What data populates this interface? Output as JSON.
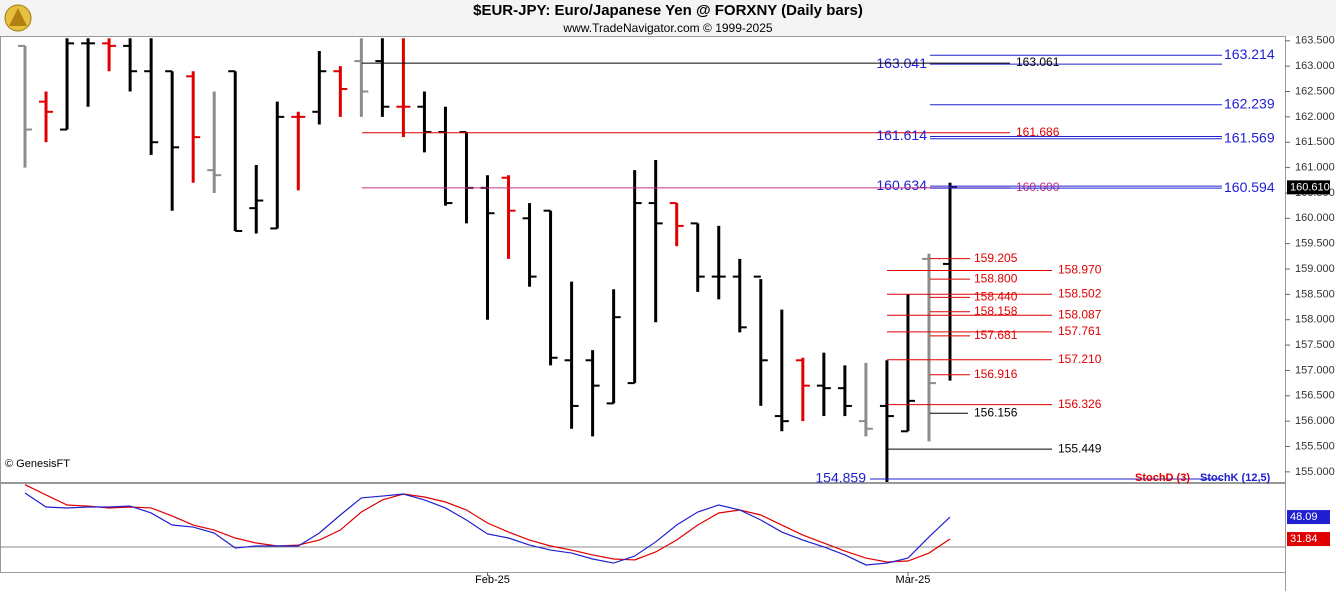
{
  "chart_data": [
    {
      "type": "ohlc",
      "title": "$EUR-JPY:  Euro/Japanese Yen @ FORXNY  (Daily bars)",
      "subtitle": "www.TradeNavigator.com © 1999-2025",
      "credit": "© GenesisFT",
      "categories": [
        null,
        null,
        null,
        null,
        null,
        null,
        null,
        null,
        null,
        null,
        null,
        null,
        null,
        null,
        null,
        null,
        null,
        null,
        null,
        null,
        null,
        null,
        "Feb-25",
        null,
        null,
        null,
        null,
        null,
        null,
        null,
        null,
        null,
        null,
        null,
        null,
        null,
        null,
        null,
        null,
        null,
        null,
        null,
        "Mar-25",
        null,
        null
      ],
      "high": [
        163.4,
        162.5,
        163.55,
        163.55,
        163.55,
        163.55,
        163.55,
        162.9,
        162.9,
        162.5,
        162.9,
        161.05,
        162.3,
        162.1,
        163.3,
        163.0,
        163.55,
        163.55,
        163.55,
        162.5,
        162.2,
        161.7,
        160.85,
        160.85,
        160.3,
        160.15,
        158.75,
        157.4,
        158.6,
        160.95,
        161.15,
        160.3,
        159.9,
        159.85,
        159.2,
        158.8,
        158.2,
        157.25,
        157.35,
        157.1,
        157.15,
        157.2,
        158.5,
        159.3,
        160.7
      ],
      "low": [
        161.0,
        161.5,
        161.75,
        162.2,
        162.9,
        162.5,
        161.25,
        160.15,
        160.7,
        160.5,
        159.75,
        159.7,
        159.8,
        160.55,
        161.85,
        162.0,
        162.0,
        162.0,
        161.6,
        161.3,
        160.25,
        159.9,
        158.0,
        159.2,
        158.65,
        157.1,
        155.85,
        155.7,
        156.35,
        156.75,
        157.95,
        159.45,
        158.55,
        158.4,
        157.75,
        156.3,
        155.8,
        156.0,
        156.1,
        156.1,
        155.7,
        154.8,
        155.8,
        155.6,
        156.8
      ],
      "open": [
        163.4,
        162.3,
        161.75,
        163.45,
        163.45,
        163.4,
        162.9,
        162.9,
        162.8,
        160.95,
        162.9,
        160.2,
        159.8,
        162.0,
        162.1,
        162.9,
        163.1,
        163.1,
        162.2,
        162.2,
        161.7,
        161.7,
        160.6,
        160.8,
        160.0,
        160.15,
        157.2,
        157.2,
        156.35,
        156.75,
        160.3,
        160.3,
        159.9,
        158.85,
        158.85,
        158.85,
        156.1,
        157.2,
        156.7,
        156.65,
        156.0,
        156.3,
        155.8,
        159.2,
        159.1
      ],
      "close": [
        161.75,
        162.1,
        163.45,
        163.45,
        163.4,
        162.9,
        161.5,
        161.4,
        161.6,
        160.85,
        159.75,
        160.35,
        162.0,
        162.0,
        162.9,
        162.55,
        162.5,
        162.2,
        162.2,
        161.7,
        160.3,
        160.6,
        160.1,
        160.15,
        158.85,
        157.25,
        156.3,
        156.7,
        158.05,
        160.3,
        159.9,
        159.85,
        158.85,
        158.85,
        157.85,
        157.2,
        156.0,
        156.7,
        156.65,
        156.3,
        155.85,
        156.1,
        156.4,
        156.75,
        160.61
      ],
      "colors": [
        "#8c8c8c",
        "#e00000",
        "#000000",
        "#000000",
        "#e00000",
        "#000000",
        "#000000",
        "#000000",
        "#e00000",
        "#8c8c8c",
        "#000000",
        "#000000",
        "#000000",
        "#e00000",
        "#000000",
        "#e00000",
        "#8c8c8c",
        "#000000",
        "#e00000",
        "#000000",
        "#000000",
        "#000000",
        "#000000",
        "#e00000",
        "#000000",
        "#000000",
        "#000000",
        "#000000",
        "#000000",
        "#000000",
        "#000000",
        "#e00000",
        "#000000",
        "#000000",
        "#000000",
        "#000000",
        "#000000",
        "#e00000",
        "#000000",
        "#000000",
        "#8c8c8c",
        "#000000",
        "#000000",
        "#8c8c8c",
        "#000000"
      ],
      "last_value_label": "160.610",
      "levels": {
        "values": [
          163.214,
          163.041,
          163.061,
          162.239,
          161.686,
          161.614,
          161.569,
          160.634,
          160.6,
          160.594,
          159.205,
          158.97,
          158.8,
          158.502,
          158.44,
          158.158,
          158.087,
          157.761,
          157.681,
          157.21,
          156.916,
          156.326,
          156.156,
          155.449,
          154.859
        ],
        "value_labels": [
          "163.214",
          "163.041",
          "163.061",
          "162.239",
          "161.686",
          "161.614",
          "161.569",
          "160.634",
          "160.600",
          "160.594",
          "159.205",
          "158.970",
          "158.800",
          "158.502",
          "158.440",
          "158.158",
          "158.087",
          "157.761",
          "157.681",
          "157.210",
          "156.916",
          "156.326",
          "156.156",
          "155.449",
          "154.859"
        ],
        "colors": [
          "#2020d0",
          "#2020d0",
          "#000000",
          "#2020d0",
          "#e00000",
          "#2020d0",
          "#2020d0",
          "#2020d0",
          "#c03080",
          "#2020d0",
          "#e00000",
          "#e00000",
          "#e00000",
          "#e00000",
          "#e00000",
          "#e00000",
          "#e00000",
          "#e00000",
          "#e00000",
          "#e00000",
          "#e00000",
          "#e00000",
          "#000000",
          "#000000",
          "#2020d0"
        ]
      },
      "ylim": [
        154.8,
        163.575
      ],
      "yticks": [
        {
          "value": 155,
          "label": "155.000"
        },
        {
          "value": 155.5,
          "label": "155.500"
        },
        {
          "value": 156,
          "label": "156.000"
        },
        {
          "value": 156.5,
          "label": "156.500"
        },
        {
          "value": 157,
          "label": "157.000"
        },
        {
          "value": 157.5,
          "label": "157.500"
        },
        {
          "value": 158,
          "label": "158.000"
        },
        {
          "value": 158.5,
          "label": "158.500"
        },
        {
          "value": 159,
          "label": "159.000"
        },
        {
          "value": 159.5,
          "label": "159.500"
        },
        {
          "value": 160,
          "label": "160.000"
        },
        {
          "value": 160.5,
          "label": "160.500"
        },
        {
          "value": 161,
          "label": "161.000"
        },
        {
          "value": 161.5,
          "label": "161.500"
        },
        {
          "value": 162,
          "label": "162.000"
        },
        {
          "value": 162.5,
          "label": "162.500"
        },
        {
          "value": 163,
          "label": "163.000"
        },
        {
          "value": 163.5,
          "label": "163.500"
        }
      ]
    },
    {
      "type": "line",
      "ylim": [
        7.5,
        72.5
      ],
      "hline": 26,
      "series": [
        {
          "name": "StochD (3)",
          "color": "#e00000",
          "values": [
            72.0,
            64.4,
            57.0,
            56.2,
            54.8,
            55.5,
            54.8,
            48.9,
            42.2,
            38.5,
            32.6,
            28.9,
            26.7,
            27.4,
            31.1,
            38.5,
            51.8,
            60.7,
            65.1,
            62.9,
            59.2,
            53.3,
            43.7,
            37.0,
            31.1,
            26.7,
            23.7,
            20.1,
            17.1,
            16.4,
            22.3,
            31.1,
            42.2,
            51.1,
            53.3,
            49.6,
            42.2,
            34.8,
            28.9,
            23.0,
            17.8,
            14.9,
            15.6,
            21.5,
            31.84
          ]
        },
        {
          "name": "StochK (12,5)",
          "color": "#2020d0",
          "values": [
            65.85,
            55.5,
            54.8,
            55.5,
            55.5,
            56.2,
            51.1,
            42.2,
            40.7,
            36.3,
            25.2,
            26.7,
            26.7,
            26.7,
            36.3,
            49.6,
            62.2,
            63.6,
            65.1,
            60.7,
            54.8,
            45.9,
            35.6,
            32.6,
            27.4,
            23.7,
            21.5,
            17.1,
            14.1,
            19.3,
            29.7,
            42.2,
            51.8,
            57.0,
            53.3,
            45.9,
            37.0,
            31.1,
            26.0,
            20.1,
            12.7,
            14.1,
            17.8,
            33.4,
            48.09
          ]
        }
      ]
    }
  ]
}
